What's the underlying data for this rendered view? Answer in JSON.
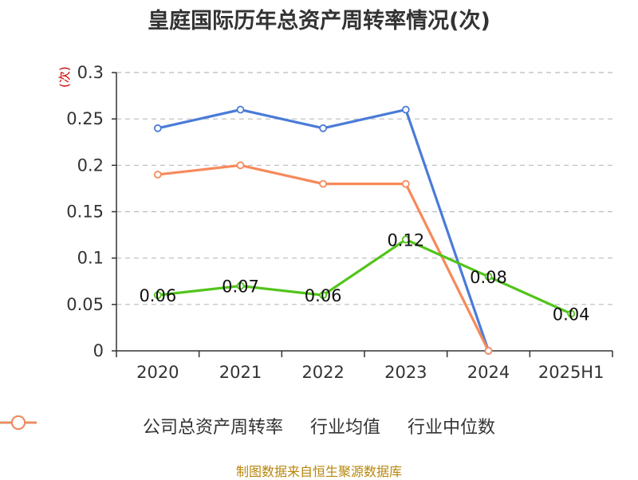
{
  "title": "皇庭国际历年总资产周转率情况(次)",
  "source": "制图数据来自恒生聚源数据库",
  "colors": {
    "company": "#52c41a",
    "industry_avg": "#4a7bd8",
    "industry_median": "#f7895a",
    "grid": "#bbbbbb",
    "ylabel": "#cc0000",
    "source": "#b8860b"
  },
  "chart_data": {
    "type": "line",
    "title": "皇庭国际历年总资产周转率情况(次)",
    "ylabel": "(次)",
    "xlabel": "",
    "categories": [
      "2020",
      "2021",
      "2022",
      "2023",
      "2024",
      "2025H1"
    ],
    "ylim": [
      0,
      0.3
    ],
    "yticks": [
      "0",
      "0.05",
      "0.1",
      "0.15",
      "0.2",
      "0.25",
      "0.3"
    ],
    "grid": true,
    "legend_position": "bottom",
    "series": [
      {
        "name": "公司总资产周转率",
        "key": "company",
        "values": [
          0.06,
          0.07,
          0.06,
          0.12,
          0.08,
          0.04
        ],
        "labels": [
          "0.06",
          "0.07",
          "0.06",
          "0.12",
          "0.08",
          "0.04"
        ]
      },
      {
        "name": "行业均值",
        "key": "industry_avg",
        "values": [
          0.24,
          0.26,
          0.24,
          0.26,
          0.0,
          null
        ]
      },
      {
        "name": "行业中位数",
        "key": "industry_median",
        "values": [
          0.19,
          0.2,
          0.18,
          0.18,
          0.0,
          null
        ]
      }
    ]
  }
}
